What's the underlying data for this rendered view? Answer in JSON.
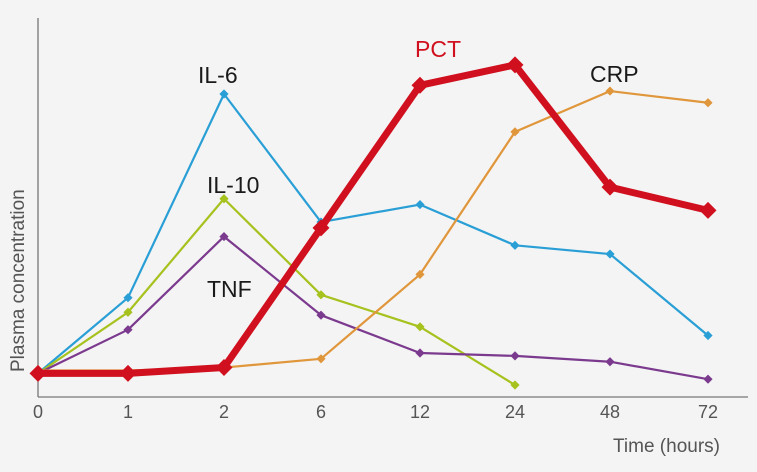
{
  "chart_data": {
    "type": "line",
    "categories": [
      "0",
      "1",
      "2",
      "6",
      "12",
      "24",
      "48",
      "72"
    ],
    "xlabel": "Time (hours)",
    "ylabel": "Plasma concentration",
    "ylim": [
      0,
      100
    ],
    "grid": false,
    "legend": "inline labels",
    "series": [
      {
        "name": "IL-6",
        "color": "#2a9fd6",
        "stroke": "thin",
        "values": [
          4,
          30,
          100,
          56,
          62,
          48,
          45,
          17
        ]
      },
      {
        "name": "IL-10",
        "color": "#a6c21e",
        "stroke": "thin",
        "values": [
          4,
          25,
          64,
          31,
          20,
          0,
          null,
          null
        ]
      },
      {
        "name": "TNF",
        "color": "#7b3a8e",
        "stroke": "thin",
        "values": [
          4,
          19,
          51,
          24,
          11,
          10,
          8,
          2
        ]
      },
      {
        "name": "CRP",
        "color": "#e0963a",
        "stroke": "thin",
        "values": [
          5,
          5,
          6,
          9,
          38,
          87,
          101,
          97
        ]
      },
      {
        "name": "PCT",
        "color": "#d0101e",
        "stroke": "thick",
        "values": [
          4,
          4,
          6,
          54,
          103,
          110,
          68,
          60
        ]
      }
    ]
  }
}
